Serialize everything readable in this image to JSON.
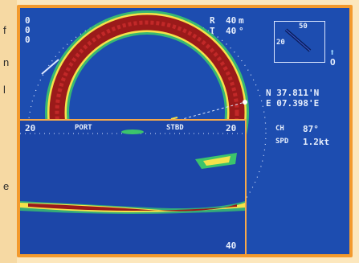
{
  "margin_fragments": [
    "f",
    "n",
    "l",
    "e"
  ],
  "sonar": {
    "range_label": "R",
    "range_value": "40",
    "range_unit": "m",
    "tilt_label": "T",
    "tilt_value": "40",
    "tilt_unit": "°",
    "vert_marks": [
      "0",
      "0",
      "0"
    ],
    "compass_scale_top": "50",
    "compass_scale_left": "20",
    "compass_north_symbol": "O",
    "lat": "N 37.811'N",
    "lon": "E 07.398'E",
    "course_label": "CH",
    "course_value": "87°",
    "speed_label": "SPD",
    "speed_value": "1.2kt",
    "inset_left_label": "20",
    "inset_right_label": "20",
    "inset_port_label": "PORT",
    "inset_stbd_label": "STBD",
    "inset_bottom_label": "40"
  },
  "colors": {
    "frame": "#f39a2d",
    "background": "#1d4db0",
    "echo_red": "#9b1a1a",
    "echo_yellow": "#f5e24a",
    "echo_green": "#3cc46b"
  }
}
